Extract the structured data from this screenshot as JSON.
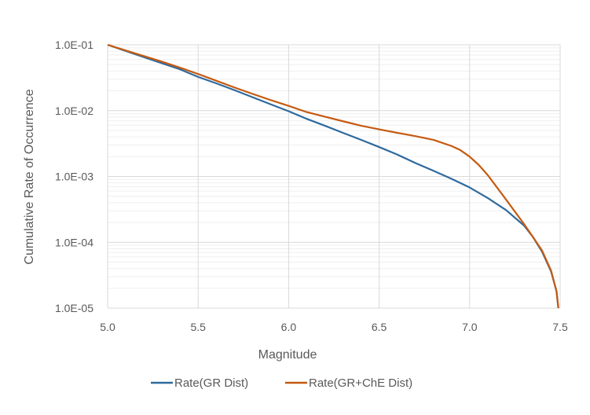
{
  "chart_data": {
    "type": "line",
    "title": "",
    "xlabel": "Magnitude",
    "ylabel": "Cumulative Rate of Occurrence",
    "xlim": [
      5.0,
      7.5
    ],
    "ylim": [
      1e-05,
      0.1
    ],
    "yscale": "log",
    "x_ticks": [
      "5.0",
      "5.5",
      "6.0",
      "6.5",
      "7.0",
      "7.5"
    ],
    "y_ticks": [
      "1.0E-05",
      "1.0E-04",
      "1.0E-03",
      "1.0E-02",
      "1.0E-01"
    ],
    "grid": true,
    "legend_position": "bottom",
    "series": [
      {
        "name": "Rate(GR Dist)",
        "color": "#2E6A9E",
        "x": [
          5.0,
          5.1,
          5.2,
          5.3,
          5.4,
          5.5,
          5.6,
          5.7,
          5.8,
          5.9,
          6.0,
          6.1,
          6.2,
          6.3,
          6.4,
          6.5,
          6.6,
          6.7,
          6.8,
          6.9,
          7.0,
          7.1,
          7.2,
          7.3,
          7.35,
          7.4,
          7.45,
          7.48,
          7.49
        ],
        "y": [
          0.1,
          0.0805,
          0.065,
          0.0525,
          0.0424,
          0.0325,
          0.026,
          0.0205,
          0.016,
          0.0125,
          0.0098,
          0.0075,
          0.0059,
          0.0046,
          0.0036,
          0.0028,
          0.00215,
          0.0016,
          0.00122,
          0.00092,
          0.00068,
          0.00047,
          0.00031,
          0.00018,
          0.00012,
          7.2e-05,
          3.6e-05,
          1.8e-05,
          1e-05
        ]
      },
      {
        "name": "Rate(GR+ChE Dist)",
        "color": "#C55A11",
        "x": [
          5.0,
          5.1,
          5.2,
          5.3,
          5.4,
          5.5,
          5.6,
          5.7,
          5.8,
          5.9,
          6.0,
          6.1,
          6.2,
          6.3,
          6.4,
          6.5,
          6.6,
          6.7,
          6.8,
          6.9,
          6.95,
          7.0,
          7.05,
          7.1,
          7.2,
          7.3,
          7.35,
          7.4,
          7.45,
          7.48,
          7.49
        ],
        "y": [
          0.1,
          0.082,
          0.0675,
          0.0555,
          0.045,
          0.036,
          0.0285,
          0.0225,
          0.018,
          0.0145,
          0.0118,
          0.0095,
          0.0081,
          0.0069,
          0.0059,
          0.0052,
          0.0046,
          0.0041,
          0.0036,
          0.0029,
          0.0025,
          0.002,
          0.0015,
          0.00105,
          0.00045,
          0.00019,
          0.00012,
          7.5e-05,
          3.7e-05,
          1.8e-05,
          1e-05
        ]
      }
    ]
  }
}
